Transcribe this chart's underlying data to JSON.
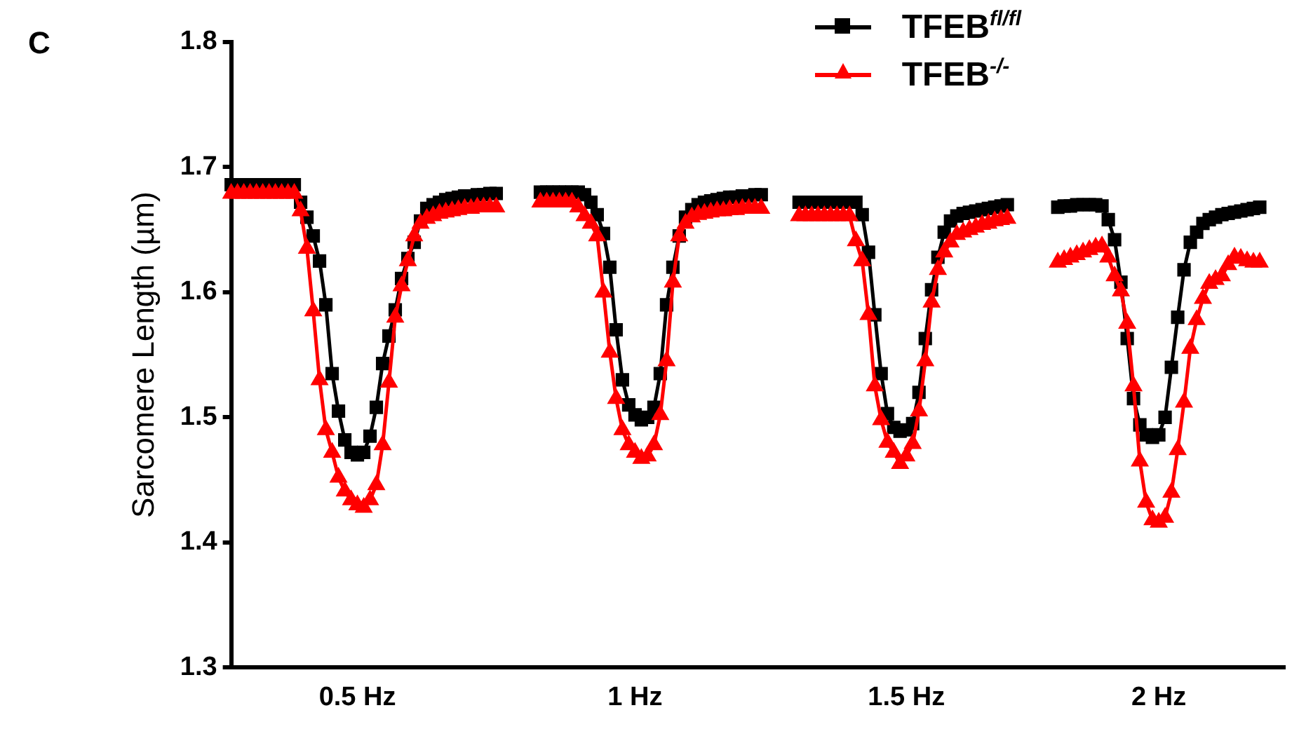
{
  "chart_data": {
    "type": "line",
    "ylabel": "Sarcomere Length (µm)",
    "annotations": [
      "C"
    ],
    "categories": [
      null,
      null,
      null,
      null,
      null,
      null,
      null,
      null,
      null,
      null,
      null,
      null,
      null,
      null,
      null,
      null,
      null,
      null,
      null,
      null,
      "0.5 Hz",
      null,
      null,
      null,
      null,
      null,
      null,
      null,
      null,
      null,
      null,
      null,
      null,
      null,
      null,
      null,
      null,
      null,
      null,
      null,
      null,
      null,
      null,
      null,
      null,
      null,
      null,
      null,
      null,
      null,
      null,
      null,
      null,
      null,
      null,
      null,
      null,
      null,
      null,
      null,
      null,
      null,
      null,
      null,
      "1 Hz",
      null,
      null,
      null,
      null,
      null,
      null,
      null,
      null,
      null,
      null,
      null,
      null,
      null,
      null,
      null,
      null,
      null,
      null,
      null,
      null,
      null,
      null,
      null,
      null,
      null,
      null,
      null,
      null,
      null,
      null,
      null,
      null,
      null,
      null,
      null,
      null,
      null,
      null,
      null,
      null,
      null,
      null,
      "1.5 Hz",
      null,
      null,
      null,
      null,
      null,
      null,
      null,
      null,
      null,
      null,
      null,
      null,
      null,
      null,
      null,
      null,
      null,
      null,
      null,
      null,
      null,
      null,
      null,
      null,
      null,
      null,
      null,
      null,
      null,
      null,
      null,
      null,
      null,
      null,
      null,
      null,
      null,
      null,
      null,
      "2 Hz",
      null,
      null,
      null,
      null,
      null,
      null,
      null,
      null,
      null,
      null,
      null,
      null,
      null,
      null,
      null,
      null,
      null,
      null,
      null,
      null
    ],
    "series": [
      {
        "name": "TFEB$^{fl/fl}$",
        "color": "#000000",
        "marker": "square",
        "values": [
          1.686,
          1.686,
          1.686,
          1.686,
          1.686,
          1.686,
          1.686,
          1.686,
          1.686,
          1.686,
          1.686,
          1.672,
          1.66,
          1.645,
          1.625,
          1.59,
          1.535,
          1.505,
          1.482,
          1.472,
          1.47,
          1.472,
          1.485,
          1.508,
          1.543,
          1.565,
          1.586,
          1.611,
          1.627,
          1.64,
          1.657,
          1.667,
          1.67,
          1.672,
          1.674,
          1.675,
          1.676,
          1.677,
          1.677,
          1.678,
          1.678,
          1.679,
          1.679,
          null,
          null,
          null,
          null,
          null,
          null,
          1.68,
          1.68,
          1.68,
          1.68,
          1.68,
          1.68,
          1.68,
          1.678,
          1.672,
          1.662,
          1.647,
          1.62,
          1.57,
          1.53,
          1.51,
          1.502,
          1.498,
          1.5,
          1.508,
          1.535,
          1.59,
          1.62,
          1.645,
          1.66,
          1.666,
          1.67,
          1.672,
          1.673,
          1.674,
          1.675,
          1.676,
          1.676,
          1.677,
          1.677,
          1.678,
          1.678,
          null,
          null,
          null,
          null,
          null,
          1.672,
          1.672,
          1.672,
          1.672,
          1.672,
          1.672,
          1.672,
          1.672,
          1.672,
          1.672,
          1.662,
          1.632,
          1.582,
          1.535,
          1.503,
          1.492,
          1.489,
          1.49,
          1.495,
          1.52,
          1.563,
          1.602,
          1.628,
          1.648,
          1.657,
          1.661,
          1.663,
          1.664,
          1.665,
          1.666,
          1.667,
          1.668,
          1.669,
          1.67,
          null,
          null,
          null,
          null,
          null,
          null,
          null,
          1.668,
          1.669,
          1.669,
          1.67,
          1.67,
          1.67,
          1.67,
          1.669,
          1.658,
          1.642,
          1.608,
          1.563,
          1.515,
          1.494,
          1.486,
          1.484,
          1.486,
          1.5,
          1.54,
          1.58,
          1.618,
          1.64,
          1.648,
          1.655,
          1.658,
          1.66,
          1.662,
          1.663,
          1.664,
          1.665,
          1.666,
          1.667,
          1.668,
          null,
          null,
          null,
          null
        ]
      },
      {
        "name": "TFEB$^{-/-}$",
        "color": "#ff0000",
        "marker": "triangle",
        "values": [
          1.679,
          1.679,
          1.679,
          1.679,
          1.679,
          1.679,
          1.679,
          1.679,
          1.679,
          1.679,
          1.679,
          1.665,
          1.635,
          1.585,
          1.53,
          1.49,
          1.472,
          1.452,
          1.441,
          1.434,
          1.43,
          1.428,
          1.434,
          1.446,
          1.478,
          1.528,
          1.58,
          1.605,
          1.625,
          1.645,
          1.655,
          1.659,
          1.661,
          1.663,
          1.664,
          1.665,
          1.666,
          1.667,
          1.667,
          1.668,
          1.668,
          1.668,
          1.668,
          null,
          null,
          null,
          null,
          null,
          null,
          1.672,
          1.672,
          1.672,
          1.672,
          1.672,
          1.672,
          1.668,
          1.661,
          1.655,
          1.645,
          1.6,
          1.552,
          1.515,
          1.49,
          1.478,
          1.472,
          1.467,
          1.469,
          1.478,
          1.502,
          1.545,
          1.608,
          1.645,
          1.655,
          1.66,
          1.662,
          1.663,
          1.664,
          1.665,
          1.665,
          1.666,
          1.666,
          1.667,
          1.667,
          1.667,
          1.667,
          null,
          null,
          null,
          null,
          null,
          1.661,
          1.661,
          1.661,
          1.661,
          1.661,
          1.661,
          1.661,
          1.661,
          1.661,
          1.641,
          1.625,
          1.582,
          1.525,
          1.498,
          1.48,
          1.472,
          1.463,
          1.469,
          1.479,
          1.505,
          1.545,
          1.592,
          1.618,
          1.632,
          1.64,
          1.646,
          1.648,
          1.65,
          1.652,
          1.654,
          1.655,
          1.657,
          1.658,
          1.659,
          null,
          null,
          null,
          null,
          null,
          null,
          null,
          1.624,
          1.626,
          1.628,
          1.63,
          1.632,
          1.634,
          1.636,
          1.637,
          1.628,
          1.613,
          1.601,
          1.575,
          1.525,
          1.465,
          1.432,
          1.418,
          1.416,
          1.42,
          1.44,
          1.474,
          1.512,
          1.555,
          1.578,
          1.595,
          1.607,
          1.61,
          1.613,
          1.622,
          1.628,
          1.627,
          1.625,
          1.624,
          1.624,
          null,
          null,
          null,
          null
        ]
      }
    ],
    "ylim": [
      1.3,
      1.8
    ],
    "yticks": [
      1.3,
      1.4,
      1.5,
      1.6,
      1.7,
      1.8
    ],
    "grid": false,
    "legend": "top right"
  }
}
